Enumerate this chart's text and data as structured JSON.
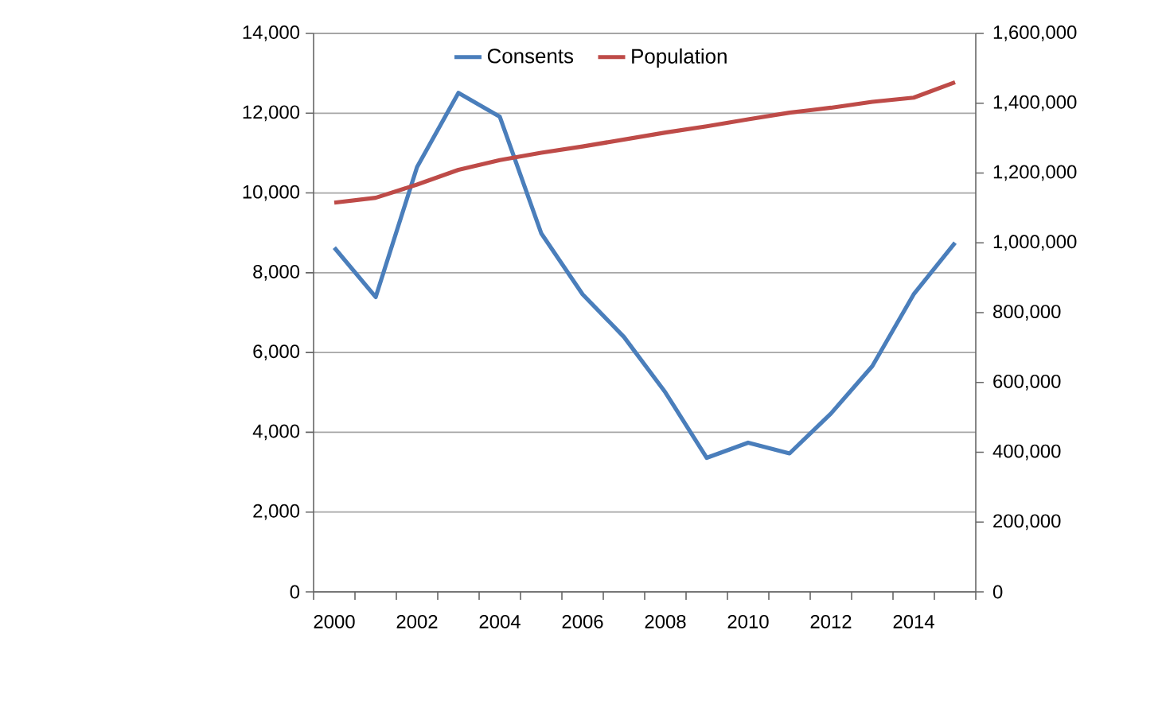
{
  "chart_data": {
    "type": "line",
    "categories": [
      "2000",
      null,
      "2002",
      null,
      "2004",
      null,
      "2006",
      null,
      "2008",
      null,
      "2010",
      null,
      "2012",
      null,
      "2014",
      null
    ],
    "series": [
      {
        "name": "Consents",
        "color": "#4a7ebb",
        "values": [
          8630,
          7390,
          10650,
          12510,
          11910,
          8990,
          7460,
          6390,
          5000,
          3360,
          3740,
          3470,
          4470,
          5660,
          7460,
          8750
        ]
      },
      {
        "name": "Population",
        "color": "#be4b48",
        "axis": "y2",
        "values": [
          1115000,
          1129000,
          1167000,
          1209000,
          1237000,
          1258000,
          1276000,
          1296000,
          1316000,
          1334000,
          1354000,
          1373000,
          1387000,
          1404000,
          1416000,
          1460000
        ]
      }
    ],
    "ylim": [
      0,
      14000
    ],
    "yticks": [
      0,
      {
        "value": 2000,
        "label": "2,000"
      },
      {
        "value": 4000,
        "label": "4,000"
      },
      {
        "value": 6000,
        "label": "6,000"
      },
      {
        "value": 8000,
        "label": "8,000"
      },
      {
        "value": 10000,
        "label": "10,000"
      },
      {
        "value": 12000,
        "label": "12,000"
      },
      {
        "value": 14000,
        "label": "14,000"
      }
    ],
    "y2lim": [
      0,
      1600000
    ],
    "y2ticks": [
      0,
      {
        "value": 200000,
        "label": "200,000"
      },
      {
        "value": 400000,
        "label": "400,000"
      },
      {
        "value": 600000,
        "label": "600,000"
      },
      {
        "value": 800000,
        "label": "800,000"
      },
      {
        "value": 1000000,
        "label": "1,000,000"
      },
      {
        "value": 1200000,
        "label": "1,200,000"
      },
      {
        "value": 1400000,
        "label": "1,400,000"
      },
      {
        "value": 1600000,
        "label": "1,600,000"
      }
    ],
    "grid": "y",
    "legend": "top",
    "marker": "none",
    "line_style": "solid"
  }
}
